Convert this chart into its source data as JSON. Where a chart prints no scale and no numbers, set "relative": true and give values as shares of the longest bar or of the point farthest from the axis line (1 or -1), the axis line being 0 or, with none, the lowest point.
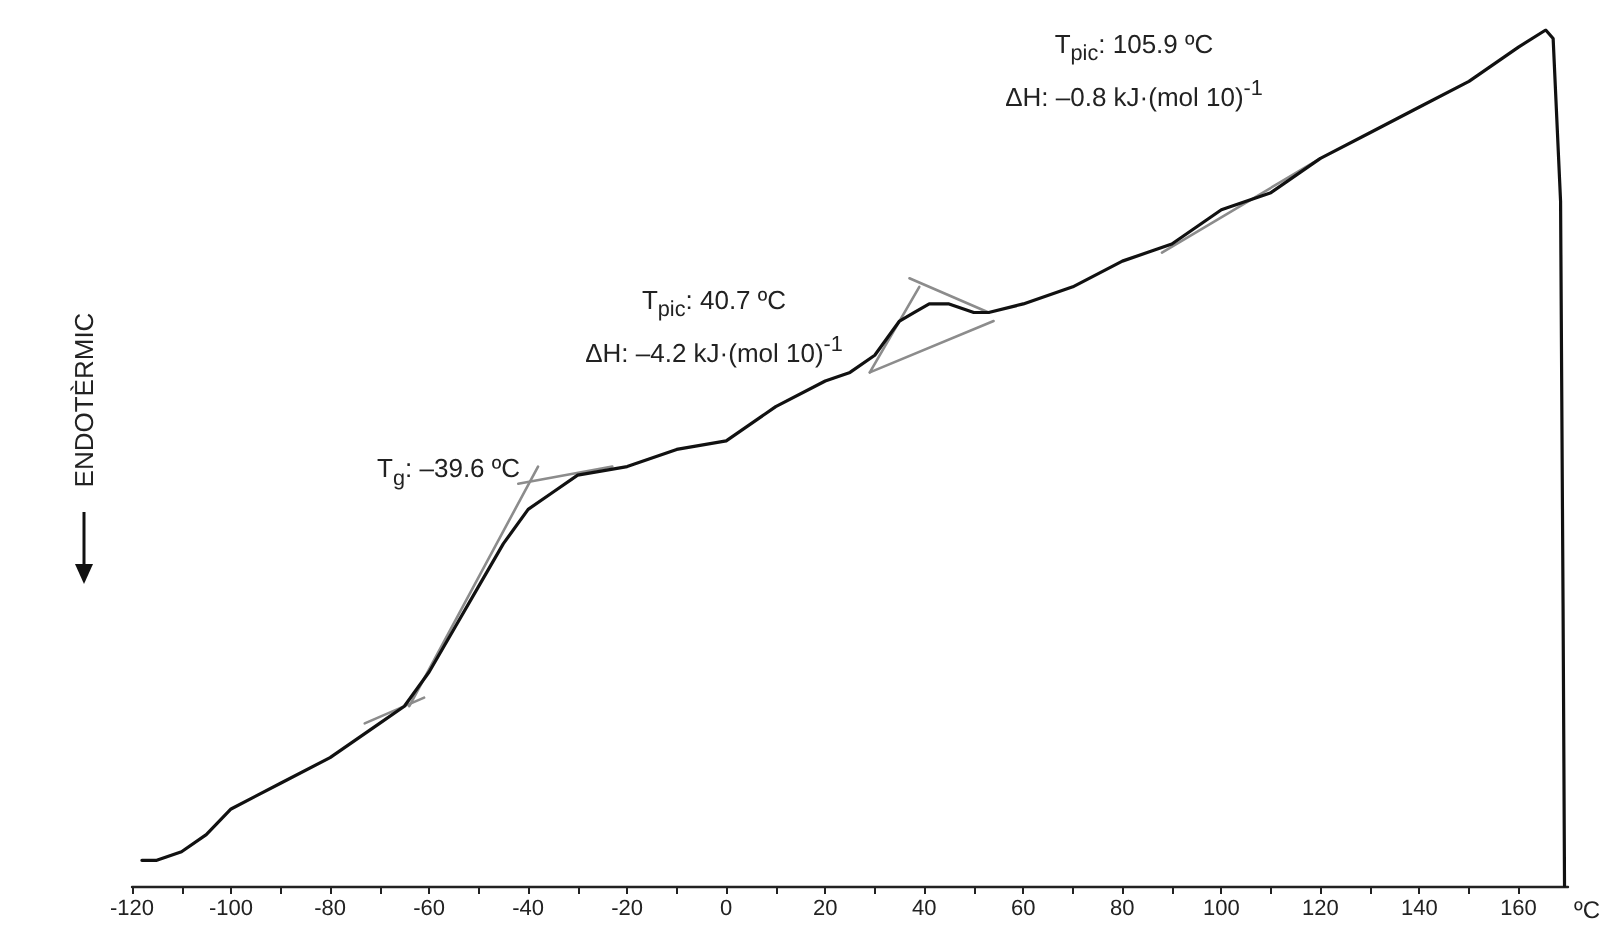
{
  "chart_data": {
    "type": "line",
    "xlabel": "ºC",
    "ylabel": "ENDOTÈRMIC",
    "relative": true,
    "marker": "none",
    "xlim": [
      -120,
      170
    ],
    "xticks": [
      -120,
      {
        "value": -110,
        "label": null
      },
      -100,
      {
        "value": -90,
        "label": null
      },
      -80,
      {
        "value": -70,
        "label": null
      },
      -60,
      {
        "value": -50,
        "label": null
      },
      -40,
      {
        "value": -30,
        "label": null
      },
      -20,
      {
        "value": -10,
        "label": null
      },
      0,
      {
        "value": 10,
        "label": null
      },
      20,
      {
        "value": 30,
        "label": null
      },
      40,
      {
        "value": 50,
        "label": null
      },
      60,
      {
        "value": 70,
        "label": null
      },
      80,
      {
        "value": 90,
        "label": null
      },
      100,
      {
        "value": 110,
        "label": null
      },
      120,
      {
        "value": 130,
        "label": null
      },
      140,
      {
        "value": 150,
        "label": null
      },
      160
    ],
    "series": [
      {
        "color": "#111111",
        "x": [
          -118,
          -115,
          -110,
          -105,
          -100,
          -90,
          -80,
          -70,
          -65,
          -60,
          -55,
          -50,
          -45,
          -40,
          -35,
          -30,
          -20,
          -10,
          0,
          10,
          20,
          25,
          30,
          35,
          38,
          41,
          45,
          50,
          53,
          60,
          70,
          80,
          90,
          100,
          110,
          120,
          130,
          140,
          150,
          160,
          165.5,
          167,
          168.5,
          169,
          169.3
        ],
        "values": [
          0.03,
          0.03,
          0.04,
          0.06,
          0.09,
          0.12,
          0.15,
          0.19,
          0.21,
          0.25,
          0.3,
          0.35,
          0.4,
          0.44,
          0.46,
          0.48,
          0.49,
          0.51,
          0.52,
          0.56,
          0.59,
          0.6,
          0.62,
          0.66,
          0.67,
          0.68,
          0.68,
          0.67,
          0.67,
          0.68,
          0.7,
          0.73,
          0.75,
          0.79,
          0.81,
          0.85,
          0.88,
          0.91,
          0.94,
          0.98,
          1,
          0.99,
          0.8,
          0.33,
          0
        ]
      },
      {
        "color": "#8c8c8c",
        "x": [
          -73,
          -61
        ],
        "values": [
          0.19,
          0.22
        ]
      },
      {
        "color": "#8c8c8c",
        "x": [
          -64,
          -38
        ],
        "values": [
          0.21,
          0.49
        ]
      },
      {
        "color": "#8c8c8c",
        "x": [
          -42,
          -23
        ],
        "values": [
          0.47,
          0.49
        ]
      },
      {
        "color": "#8c8c8c",
        "x": [
          29,
          54
        ],
        "values": [
          0.6,
          0.66
        ]
      },
      {
        "color": "#8c8c8c",
        "x": [
          29,
          39
        ],
        "values": [
          0.6,
          0.7
        ]
      },
      {
        "color": "#8c8c8c",
        "x": [
          37,
          53
        ],
        "values": [
          0.71,
          0.67
        ]
      },
      {
        "color": "#8c8c8c",
        "x": [
          88,
          120
        ],
        "values": [
          0.74,
          0.85
        ]
      }
    ],
    "annotations": [
      {
        "text": "T$_{g}$: –39.6 ºC",
        "x": -39.6,
        "y": 0.46
      },
      "T$_{pic}$: 40.7 ºC\nΔH: –4.2 kJ·(mol 10)$^{-1}$",
      "T$_{pic}$: 105.9 ºC\nΔH: –0.8 kJ·(mol 10)$^{-1}$"
    ]
  }
}
